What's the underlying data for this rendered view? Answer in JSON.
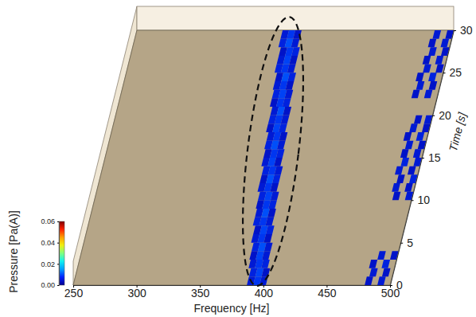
{
  "chart_data": {
    "type": "heatmap",
    "x_label": "Frequency [Hz]",
    "y_label": "Time [s]",
    "colorbar_label": "Pressure [Pa(A)]",
    "xlim": [
      250,
      500
    ],
    "xticks": [
      250,
      300,
      350,
      400,
      450,
      500
    ],
    "ylim": [
      0,
      30
    ],
    "yticks": [
      0,
      5,
      10,
      15,
      20,
      25,
      30
    ],
    "colorbar": {
      "range": [
        0,
        0.06
      ],
      "ticks": [
        {
          "value": 0,
          "label": "0.00"
        },
        0.02,
        0.04,
        0.06
      ]
    },
    "cells": [
      [
        387,
        0,
        0.005
      ],
      [
        392,
        0,
        0.008
      ],
      [
        397,
        0,
        0.005
      ],
      [
        387,
        1,
        0.006
      ],
      [
        392,
        1,
        0.009
      ],
      [
        397,
        1,
        0.004
      ],
      [
        385,
        2,
        0.005
      ],
      [
        390,
        2,
        0.008
      ],
      [
        395,
        2,
        0.006
      ],
      [
        384,
        3,
        0.004
      ],
      [
        389,
        3,
        0.009
      ],
      [
        394,
        3,
        0.005
      ],
      [
        384,
        4,
        0.006
      ],
      [
        389,
        4,
        0.01
      ],
      [
        394,
        4,
        0.005
      ],
      [
        382,
        5,
        0.005
      ],
      [
        387,
        5,
        0.008
      ],
      [
        392,
        5,
        0.004
      ],
      [
        382,
        6,
        0.004
      ],
      [
        387,
        6,
        0.009
      ],
      [
        392,
        6,
        0.006
      ],
      [
        380,
        7,
        0.006
      ],
      [
        385,
        7,
        0.008
      ],
      [
        390,
        7,
        0.005
      ],
      [
        380,
        8,
        0.005
      ],
      [
        385,
        8,
        0.01
      ],
      [
        390,
        8,
        0.004
      ],
      [
        379,
        9,
        0.004
      ],
      [
        384,
        9,
        0.008
      ],
      [
        389,
        9,
        0.006
      ],
      [
        379,
        10,
        0.006
      ],
      [
        384,
        10,
        0.009
      ],
      [
        389,
        10,
        0.005
      ],
      [
        377,
        11,
        0.005
      ],
      [
        382,
        11,
        0.008
      ],
      [
        387,
        11,
        0.004
      ],
      [
        377,
        12,
        0.004
      ],
      [
        382,
        12,
        0.01
      ],
      [
        387,
        12,
        0.006
      ],
      [
        377,
        13,
        0.006
      ],
      [
        382,
        13,
        0.008
      ],
      [
        387,
        13,
        0.005
      ],
      [
        375,
        14,
        0.005
      ],
      [
        380,
        14,
        0.009
      ],
      [
        385,
        14,
        0.004
      ],
      [
        375,
        15,
        0.004
      ],
      [
        380,
        15,
        0.008
      ],
      [
        385,
        15,
        0.006
      ],
      [
        374,
        16,
        0.006
      ],
      [
        379,
        16,
        0.01
      ],
      [
        384,
        16,
        0.005
      ],
      [
        374,
        17,
        0.005
      ],
      [
        379,
        17,
        0.008
      ],
      [
        384,
        17,
        0.004
      ],
      [
        372,
        18,
        0.004
      ],
      [
        377,
        18,
        0.009
      ],
      [
        382,
        18,
        0.006
      ],
      [
        372,
        19,
        0.006
      ],
      [
        377,
        19,
        0.008
      ],
      [
        382,
        19,
        0.005
      ],
      [
        372,
        20,
        0.005
      ],
      [
        377,
        20,
        0.01
      ],
      [
        382,
        20,
        0.004
      ],
      [
        370,
        21,
        0.004
      ],
      [
        375,
        21,
        0.008
      ],
      [
        380,
        21,
        0.006
      ],
      [
        370,
        22,
        0.006
      ],
      [
        375,
        22,
        0.009
      ],
      [
        380,
        22,
        0.005
      ],
      [
        369,
        23,
        0.005
      ],
      [
        374,
        23,
        0.008
      ],
      [
        379,
        23,
        0.004
      ],
      [
        369,
        24,
        0.004
      ],
      [
        374,
        24,
        0.01
      ],
      [
        379,
        24,
        0.006
      ],
      [
        367,
        25,
        0.006
      ],
      [
        372,
        25,
        0.008
      ],
      [
        377,
        25,
        0.005
      ],
      [
        367,
        26,
        0.005
      ],
      [
        372,
        26,
        0.009
      ],
      [
        377,
        26,
        0.004
      ],
      [
        367,
        27,
        0.004
      ],
      [
        372,
        27,
        0.008
      ],
      [
        377,
        27,
        0.006
      ],
      [
        365,
        28,
        0.006
      ],
      [
        370,
        28,
        0.01
      ],
      [
        375,
        28,
        0.005
      ],
      [
        365,
        29,
        0.005
      ],
      [
        370,
        29,
        0.008
      ],
      [
        375,
        29,
        0.004
      ],
      [
        480,
        0,
        0.004
      ],
      [
        490,
        0,
        0.005
      ],
      [
        482,
        1,
        0.005
      ],
      [
        492,
        1,
        0.004
      ],
      [
        480,
        2,
        0.004
      ],
      [
        490,
        2,
        0.006
      ],
      [
        485,
        3,
        0.005
      ],
      [
        495,
        3,
        0.004
      ],
      [
        485,
        10,
        0.004
      ],
      [
        495,
        10,
        0.005
      ],
      [
        483,
        11,
        0.005
      ],
      [
        493,
        11,
        0.004
      ],
      [
        485,
        12,
        0.004
      ],
      [
        495,
        12,
        0.006
      ],
      [
        482,
        13,
        0.005
      ],
      [
        492,
        13,
        0.004
      ],
      [
        485,
        14,
        0.006
      ],
      [
        495,
        14,
        0.005
      ],
      [
        483,
        15,
        0.004
      ],
      [
        493,
        15,
        0.005
      ],
      [
        485,
        16,
        0.005
      ],
      [
        495,
        16,
        0.004
      ],
      [
        482,
        17,
        0.004
      ],
      [
        492,
        17,
        0.006
      ],
      [
        485,
        18,
        0.005
      ],
      [
        495,
        18,
        0.004
      ],
      [
        487,
        19,
        0.004
      ],
      [
        495,
        19,
        0.005
      ],
      [
        480,
        22,
        0.004
      ],
      [
        490,
        22,
        0.005
      ],
      [
        482,
        23,
        0.005
      ],
      [
        492,
        23,
        0.004
      ],
      [
        480,
        24,
        0.004
      ],
      [
        490,
        24,
        0.006
      ],
      [
        484,
        25,
        0.005
      ],
      [
        494,
        25,
        0.004
      ],
      [
        482,
        26,
        0.004
      ],
      [
        492,
        26,
        0.005
      ],
      [
        485,
        27,
        0.005
      ],
      [
        495,
        27,
        0.004
      ],
      [
        483,
        28,
        0.004
      ],
      [
        493,
        28,
        0.005
      ],
      [
        485,
        29,
        0.005
      ],
      [
        495,
        29,
        0.004
      ]
    ]
  }
}
